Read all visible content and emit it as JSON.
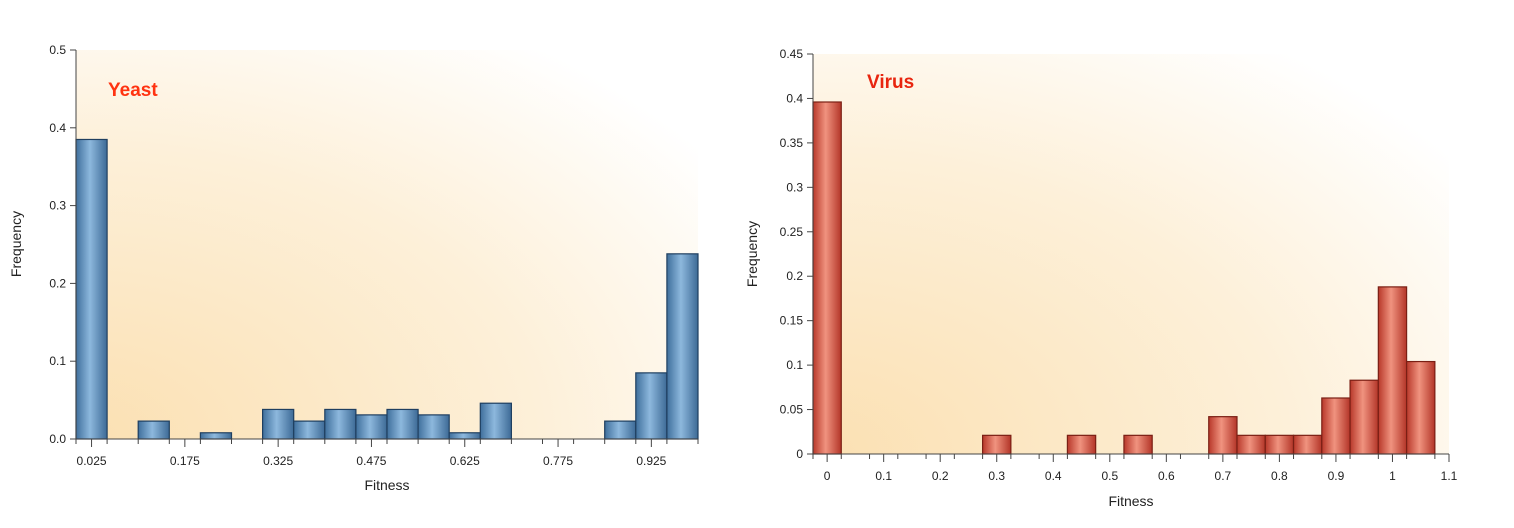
{
  "chart_data": [
    {
      "type": "bar",
      "title": "Yeast",
      "xlabel": "Fitness",
      "ylabel": "Frequency",
      "ylim": [
        0,
        0.5
      ],
      "y_ticks": [
        "0.0",
        "0.1",
        "0.2",
        "0.3",
        "0.4",
        "0.5"
      ],
      "x_ticks": [
        "0.025",
        "0.175",
        "0.325",
        "0.475",
        "0.625",
        "0.775",
        "0.925"
      ],
      "xlim": [
        0,
        1.0
      ],
      "bin_width": 0.05,
      "bins": [
        0.025,
        0.075,
        0.125,
        0.175,
        0.225,
        0.275,
        0.325,
        0.375,
        0.425,
        0.475,
        0.525,
        0.575,
        0.625,
        0.675,
        0.725,
        0.775,
        0.825,
        0.875,
        0.925,
        0.975
      ],
      "values": [
        0.385,
        0,
        0.023,
        0,
        0.008,
        0,
        0.038,
        0.023,
        0.038,
        0.031,
        0.038,
        0.031,
        0.008,
        0.046,
        0,
        0,
        0,
        0.023,
        0.085,
        0.238
      ],
      "colors": {
        "bar": "#5b8fbd",
        "edge": "#1f3f60",
        "title": "#ff3311",
        "background": "#fbe3b8"
      },
      "grid": false
    },
    {
      "type": "bar",
      "title": "Virus",
      "xlabel": "Fitness",
      "ylabel": "Frequency",
      "ylim": [
        0,
        0.45
      ],
      "y_ticks": [
        "0",
        "0.05",
        "0.1",
        "0.15",
        "0.2",
        "0.25",
        "0.3",
        "0.35",
        "0.4",
        "0.45"
      ],
      "x_ticks": [
        "0",
        "0.1",
        "0.2",
        "0.3",
        "0.4",
        "0.5",
        "0.6",
        "0.7",
        "0.8",
        "0.9",
        "1",
        "1.1"
      ],
      "xlim": [
        -0.025,
        1.1
      ],
      "bin_width": 0.05,
      "bins": [
        0,
        0.05,
        0.1,
        0.15,
        0.2,
        0.25,
        0.3,
        0.35,
        0.4,
        0.45,
        0.5,
        0.55,
        0.6,
        0.65,
        0.7,
        0.75,
        0.8,
        0.85,
        0.9,
        0.95,
        1.0,
        1.05
      ],
      "values": [
        0.396,
        0,
        0,
        0,
        0,
        0,
        0.021,
        0,
        0,
        0.021,
        0,
        0.021,
        0,
        0,
        0.042,
        0.021,
        0.021,
        0.021,
        0.063,
        0.083,
        0.188,
        0.104
      ],
      "colors": {
        "bar": "#d9594a",
        "edge": "#7a1f14",
        "title": "#e8250f",
        "background": "#fbe3b8"
      },
      "grid": false
    }
  ]
}
